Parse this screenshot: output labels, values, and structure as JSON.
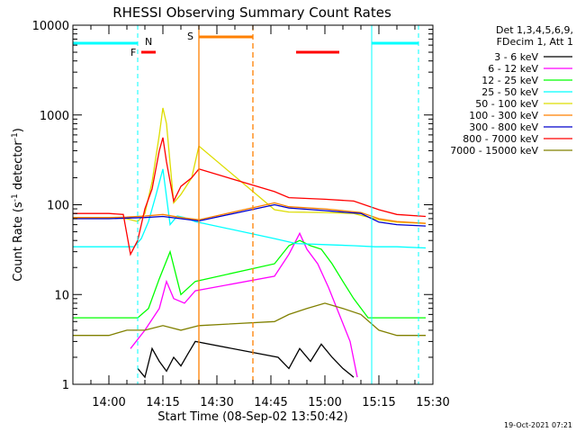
{
  "chart_data": {
    "type": "line",
    "title": "RHESSI Observing Summary Count Rates",
    "xlabel": "Start Time (08-Sep-02 13:50:42)",
    "ylabel": "Count Rate (s⁻¹ detector⁻¹)",
    "ylabel_parts": [
      "Count Rate (s",
      "-1",
      " detector",
      "-1",
      ")"
    ],
    "yscale": "log",
    "ylim": [
      1,
      10000
    ],
    "xlim": [
      "13:50",
      "15:30"
    ],
    "x_ticks": [
      "14:00",
      "14:15",
      "14:30",
      "14:45",
      "15:00",
      "15:15",
      "15:30"
    ],
    "y_ticks": [
      "1",
      "10",
      "100",
      "1000",
      "10000"
    ],
    "legend_position": "right",
    "legend_header": [
      "Det 1,3,4,5,6,9,",
      "FDecim 1, Att 1"
    ],
    "timestamp": "19-Oct-2021 07:21",
    "series": [
      {
        "name": "3 - 6 keV",
        "color": "#000000",
        "x": [
          "14:08",
          "14:10",
          "14:12",
          "14:14",
          "14:16",
          "14:18",
          "14:20",
          "14:22",
          "14:24",
          "14:47",
          "14:50",
          "14:53",
          "14:56",
          "14:59",
          "15:02",
          "15:05",
          "15:08"
        ],
        "values": [
          1.5,
          1.2,
          2.5,
          1.8,
          1.4,
          2.0,
          1.6,
          2.2,
          3.0,
          2.0,
          1.5,
          2.5,
          1.8,
          2.8,
          2.0,
          1.5,
          1.2
        ]
      },
      {
        "name": "6 - 12 keV",
        "color": "#ff00ff",
        "x": [
          "14:06",
          "14:10",
          "14:14",
          "14:16",
          "14:18",
          "14:21",
          "14:24",
          "14:46",
          "14:50",
          "14:53",
          "14:55",
          "14:58",
          "15:01",
          "15:04",
          "15:07",
          "15:09"
        ],
        "values": [
          2.5,
          4.0,
          7.0,
          14.0,
          9.0,
          8.0,
          11.0,
          16.0,
          28.0,
          48.0,
          32.0,
          22.0,
          12.0,
          6.0,
          3.0,
          1.2
        ]
      },
      {
        "name": "12 - 25 keV",
        "color": "#00ff00",
        "x": [
          "13:50",
          "14:00",
          "14:05",
          "14:08",
          "14:11",
          "14:14",
          "14:17",
          "14:20",
          "14:24",
          "14:46",
          "14:50",
          "14:53",
          "14:56",
          "14:59",
          "15:02",
          "15:05",
          "15:08",
          "15:12",
          "15:18",
          "15:24",
          "15:28"
        ],
        "values": [
          5.5,
          5.5,
          5.5,
          5.5,
          7.0,
          15.0,
          30.0,
          10.0,
          14.0,
          22.0,
          35.0,
          40.0,
          35.0,
          32.0,
          22.0,
          14.0,
          9.0,
          5.5,
          5.5,
          5.5,
          5.5
        ]
      },
      {
        "name": "25 - 50 keV",
        "color": "#00ffff",
        "x": [
          "13:50",
          "14:00",
          "14:05",
          "14:07",
          "14:09",
          "14:11",
          "14:13",
          "14:15",
          "14:17",
          "14:19",
          "14:21",
          "14:24",
          "14:46",
          "14:52",
          "15:00",
          "15:08",
          "15:14",
          "15:20",
          "15:28"
        ],
        "values": [
          34,
          34,
          34,
          34,
          42,
          65,
          125,
          250,
          60,
          75,
          72,
          65,
          42,
          37,
          36,
          35,
          34,
          34,
          33
        ]
      },
      {
        "name": "50 - 100 keV",
        "color": "#dddd00",
        "x": [
          "13:50",
          "14:00",
          "14:05",
          "14:08",
          "14:10",
          "14:12",
          "14:14",
          "14:15",
          "14:16",
          "14:18",
          "14:20",
          "14:23",
          "14:25",
          "14:46",
          "14:50",
          "15:00",
          "15:08",
          "15:15",
          "15:20",
          "15:28"
        ],
        "values": [
          72,
          72,
          70,
          65,
          80,
          180,
          600,
          1200,
          800,
          105,
          130,
          200,
          450,
          88,
          83,
          82,
          80,
          68,
          64,
          62
        ]
      },
      {
        "name": "100 - 300 keV",
        "color": "#ff8000",
        "x": [
          "13:50",
          "14:00",
          "14:05",
          "14:10",
          "14:15",
          "14:20",
          "14:25",
          "14:46",
          "14:50",
          "15:00",
          "15:10",
          "15:15",
          "15:20",
          "15:28"
        ],
        "values": [
          72,
          72,
          73,
          75,
          78,
          72,
          68,
          105,
          95,
          90,
          82,
          70,
          65,
          62
        ]
      },
      {
        "name": "300 - 800 keV",
        "color": "#0000cc",
        "x": [
          "13:50",
          "14:00",
          "14:05",
          "14:10",
          "14:15",
          "14:20",
          "14:25",
          "14:46",
          "14:50",
          "15:00",
          "15:10",
          "15:15",
          "15:20",
          "15:28"
        ],
        "values": [
          70,
          70,
          71,
          72,
          74,
          70,
          66,
          100,
          92,
          86,
          80,
          64,
          60,
          58
        ]
      },
      {
        "name": "800 - 7000 keV",
        "color": "#ff0000",
        "x": [
          "13:50",
          "14:00",
          "14:04",
          "14:06",
          "14:08",
          "14:10",
          "14:12",
          "14:14",
          "14:15",
          "14:16",
          "14:18",
          "14:20",
          "14:23",
          "14:25",
          "14:46",
          "14:50",
          "15:00",
          "15:08",
          "15:15",
          "15:20",
          "15:28"
        ],
        "values": [
          80,
          80,
          78,
          28,
          40,
          90,
          150,
          400,
          560,
          300,
          110,
          160,
          200,
          250,
          140,
          120,
          115,
          110,
          88,
          78,
          74
        ]
      },
      {
        "name": "7000 - 15000 keV",
        "color": "#808000",
        "x": [
          "13:50",
          "14:00",
          "14:05",
          "14:10",
          "14:15",
          "14:20",
          "14:25",
          "14:46",
          "14:50",
          "14:55",
          "15:00",
          "15:05",
          "15:10",
          "15:15",
          "15:20",
          "15:28"
        ],
        "values": [
          3.5,
          3.5,
          4.0,
          4.0,
          4.5,
          4.0,
          4.5,
          5.0,
          6.0,
          7.0,
          8.0,
          7.0,
          6.0,
          4.0,
          3.5,
          3.5
        ]
      }
    ],
    "annotations": [
      {
        "label": "N",
        "color": "#00ffff",
        "type": "night",
        "x": [
          "13:50",
          "14:08"
        ],
        "x2": [
          "15:13",
          "15:26"
        ]
      },
      {
        "label": "F",
        "color": "#ff0000",
        "type": "flare",
        "x": [
          "14:09",
          "14:13"
        ]
      },
      {
        "label": "S",
        "color": "#ff8000",
        "type": "saa",
        "x": [
          "14:25",
          "14:40"
        ]
      },
      {
        "label": "",
        "color": "#ff0000",
        "type": "flare",
        "x": [
          "14:52",
          "15:04"
        ]
      }
    ],
    "grid": false
  }
}
